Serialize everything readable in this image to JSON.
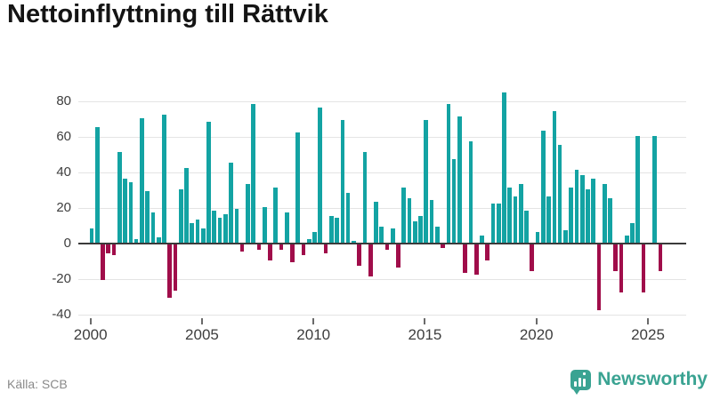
{
  "title": "Nettoinflyttning till Rättvik",
  "source": "Källa: SCB",
  "logo": {
    "text": "Newsworthy",
    "color": "#3aa392",
    "icon": "bar-chart-pin-icon"
  },
  "colors": {
    "positive_bar": "#13a3a3",
    "negative_bar": "#a00d4a",
    "gridline": "#e4e4e4",
    "zero_line": "#3a3a3a",
    "axis_text": "#3e3e3e",
    "title_text": "#141414",
    "source_text": "#8a8a8a"
  },
  "chart_data": {
    "type": "bar",
    "title": "Nettoinflyttning till Rättvik",
    "xlabel": "",
    "ylabel": "",
    "x_unit": "quarter",
    "period_start": "2000 Q1",
    "period_end": "2025 Q3",
    "ylim": [
      -40,
      86
    ],
    "grid": true,
    "legend": "none",
    "y_ticks": [
      80,
      60,
      40,
      20,
      0,
      -20,
      -40
    ],
    "x_tick_labels": [
      "2000",
      "2005",
      "2010",
      "2015",
      "2020",
      "2025"
    ],
    "x_tick_quarter_indices": [
      0,
      20,
      40,
      60,
      80,
      100
    ],
    "values": [
      8,
      65,
      -20,
      -5,
      -6,
      51,
      36,
      34,
      2,
      70,
      29,
      17,
      3,
      72,
      -30,
      -26,
      30,
      42,
      11,
      13,
      8,
      68,
      18,
      14,
      16,
      45,
      19,
      -4,
      33,
      78,
      -3,
      20,
      -9,
      31,
      -3,
      17,
      -10,
      62,
      -6,
      2,
      6,
      76,
      -5,
      15,
      14,
      69,
      28,
      1,
      -12,
      51,
      -18,
      23,
      9,
      -3,
      8,
      -13,
      31,
      25,
      12,
      15,
      69,
      24,
      9,
      -2,
      78,
      47,
      71,
      -16,
      57,
      -17,
      4,
      -9,
      22,
      22,
      85,
      31,
      26,
      33,
      18,
      -15,
      6,
      63,
      26,
      74,
      55,
      7,
      31,
      41,
      38,
      30,
      36,
      -37,
      33,
      25,
      -15,
      -27,
      4,
      11,
      60,
      -27,
      0,
      60,
      -15
    ]
  }
}
